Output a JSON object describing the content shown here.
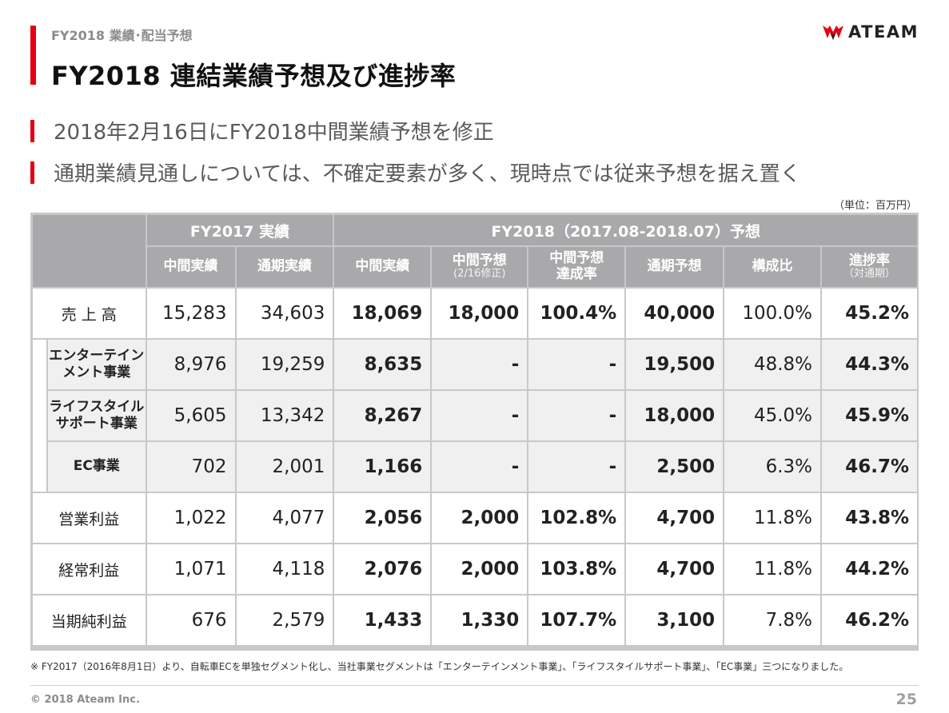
{
  "header": {
    "section": "FY2018 業績･配当予想",
    "title": "FY2018 連結業績予想及び進捗率",
    "logo_text": "ATEAM"
  },
  "bullets": [
    "2018年2月16日にFY2018中間業績予想を修正",
    "通期業績見通しについては、不確定要素が多く、現時点では従来予想を据え置く"
  ],
  "unit": "（単位：百万円）",
  "table": {
    "group_headers": [
      "FY2017 実績",
      "FY2018（2017.08-2018.07）予想"
    ],
    "columns": [
      {
        "label": "中間実績",
        "sub": ""
      },
      {
        "label": "通期実績",
        "sub": ""
      },
      {
        "label": "中間実績",
        "sub": ""
      },
      {
        "label": "中間予想",
        "sub": "(2/16修正)"
      },
      {
        "label": "中間予想\n達成率",
        "sub": ""
      },
      {
        "label": "通期予想",
        "sub": ""
      },
      {
        "label": "構成比",
        "sub": ""
      },
      {
        "label": "進捗率",
        "sub": "（対通期）"
      }
    ],
    "rows": [
      {
        "label": "売 上 高",
        "values": [
          "15,283",
          "34,603",
          "18,069",
          "18,000",
          "100.4%",
          "40,000",
          "100.0%",
          "45.2%"
        ]
      },
      {
        "label": "エンターテイン\nメント事業",
        "values": [
          "8,976",
          "19,259",
          "8,635",
          "-",
          "-",
          "19,500",
          "48.8%",
          "44.3%"
        ]
      },
      {
        "label": "ライフスタイル\nサポート事業",
        "values": [
          "5,605",
          "13,342",
          "8,267",
          "-",
          "-",
          "18,000",
          "45.0%",
          "45.9%"
        ]
      },
      {
        "label": "EC事業",
        "values": [
          "702",
          "2,001",
          "1,166",
          "-",
          "-",
          "2,500",
          "6.3%",
          "46.7%"
        ]
      },
      {
        "label": "営業利益",
        "values": [
          "1,022",
          "4,077",
          "2,056",
          "2,000",
          "102.8%",
          "4,700",
          "11.8%",
          "43.8%"
        ]
      },
      {
        "label": "経常利益",
        "values": [
          "1,071",
          "4,118",
          "2,076",
          "2,000",
          "103.8%",
          "4,700",
          "11.8%",
          "44.2%"
        ]
      },
      {
        "label": "当期純利益",
        "values": [
          "676",
          "2,579",
          "1,433",
          "1,330",
          "107.7%",
          "3,100",
          "7.8%",
          "46.2%"
        ]
      }
    ]
  },
  "note": "※ FY2017（2016年8月1日）より、自転車ECを単独セグメント化し、当社事業セグメントは「エンターテインメント事業」、「ライフスタイルサポート事業」、「EC事業」三つになりました。",
  "footer": {
    "copyright": "© 2018 Ateam Inc.",
    "page": "25"
  },
  "colors": {
    "accent": "#e60012",
    "header_bg": "#a9a9ab",
    "alt_row": "#f0f0f0"
  }
}
